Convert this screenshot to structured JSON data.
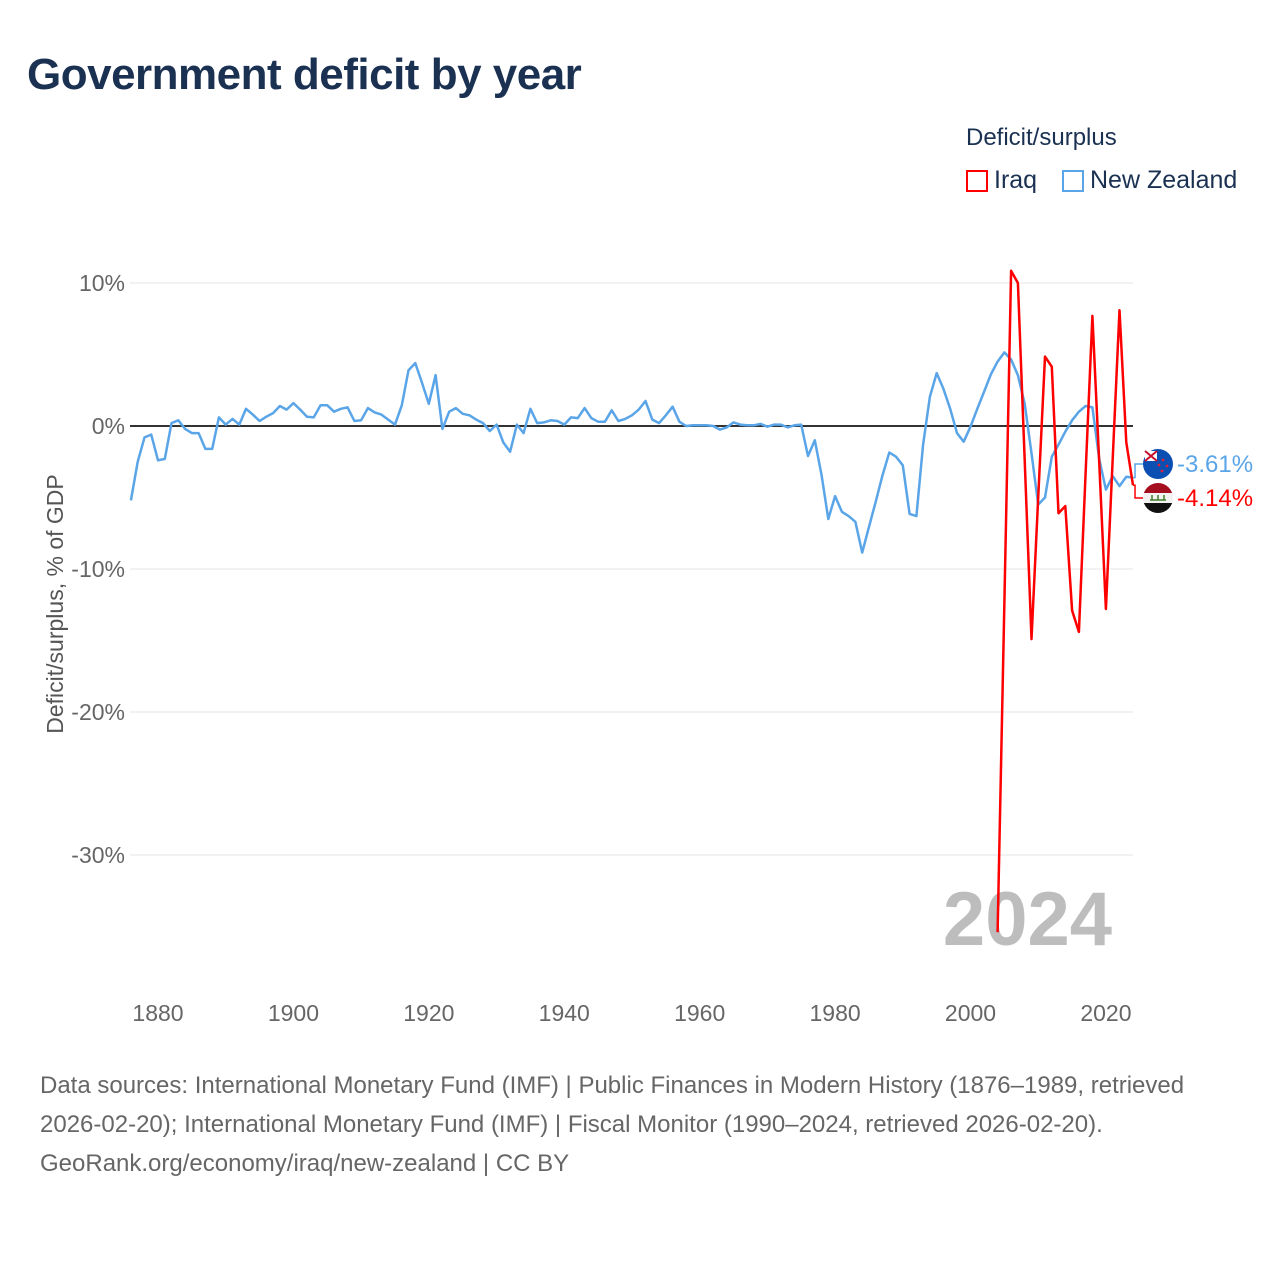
{
  "title": "Government deficit by year",
  "legend": {
    "title": "Deficit/surplus",
    "items": [
      {
        "name": "Iraq",
        "color": "#ff0000"
      },
      {
        "name": "New Zealand",
        "color": "#5aa5e8"
      }
    ]
  },
  "watermark_year": "2024",
  "footer": {
    "sources": "Data sources: International Monetary Fund (IMF) | Public Finances in Modern History (1876–1989, retrieved 2026-02-20); International Monetary Fund (IMF) | Fiscal Monitor (1990–2024, retrieved 2026-02-20).",
    "credit": "GeoRank.org/economy/iraq/new-zealand | CC BY"
  },
  "chart_data": {
    "type": "line",
    "title": "Government deficit by year",
    "xlabel": "",
    "ylabel": "Deficit/surplus, % of GDP",
    "xlim": [
      1876,
      2024
    ],
    "ylim": [
      -37,
      12
    ],
    "grid": true,
    "legend_position": "top-right",
    "x_ticks": [
      1880,
      1900,
      1920,
      1940,
      1960,
      1980,
      2000,
      2020
    ],
    "x_tick_labels": [
      "1880",
      "1900",
      "1920",
      "1940",
      "1960",
      "1980",
      "2000",
      "2020"
    ],
    "y_ticks": [
      10,
      0,
      -10,
      -20,
      -30
    ],
    "y_tick_labels": [
      "10%",
      "0%",
      "-10%",
      "-20%",
      "-30%"
    ],
    "series": [
      {
        "name": "New Zealand",
        "color": "#5aa5e8",
        "end_label": "-3.61%",
        "start_year": 1876,
        "values": [
          -5.2,
          -2.5,
          -0.8,
          -0.6,
          -2.4,
          -2.3,
          0.2,
          0.4,
          -0.2,
          -0.5,
          -0.5,
          -1.6,
          -1.6,
          0.6,
          0.1,
          0.5,
          0.1,
          1.2,
          0.8,
          0.35,
          0.65,
          0.9,
          1.4,
          1.15,
          1.6,
          1.15,
          0.65,
          0.6,
          1.45,
          1.45,
          1.0,
          1.2,
          1.3,
          0.35,
          0.4,
          1.25,
          0.95,
          0.8,
          0.45,
          0.1,
          1.45,
          3.9,
          4.4,
          3.0,
          1.55,
          3.55,
          -0.2,
          1.0,
          1.25,
          0.85,
          0.75,
          0.45,
          0.2,
          -0.35,
          0.1,
          -1.15,
          -1.8,
          0.1,
          -0.5,
          1.2,
          0.2,
          0.25,
          0.4,
          0.35,
          0.1,
          0.6,
          0.55,
          1.25,
          0.55,
          0.3,
          0.3,
          1.1,
          0.35,
          0.5,
          0.75,
          1.15,
          1.75,
          0.45,
          0.2,
          0.75,
          1.35,
          0.3,
          0,
          0.05,
          0.05,
          0.05,
          0,
          -0.25,
          -0.1,
          0.25,
          0.1,
          0.05,
          0.05,
          0.15,
          -0.05,
          0.1,
          0.1,
          -0.1,
          0.05,
          0.1,
          -2.1,
          -1.0,
          -3.45,
          -6.5,
          -4.9,
          -6.0,
          -6.3,
          -6.7,
          -8.85,
          -7.05,
          -5.3,
          -3.45,
          -1.85,
          -2.15,
          -2.75,
          -6.15,
          -6.3,
          -1.3,
          2.05,
          3.7,
          2.6,
          1.2,
          -0.5,
          -1.1,
          -0.05,
          1.2,
          2.4,
          3.6,
          4.5,
          5.15,
          4.65,
          3.55,
          1.55,
          -1.9,
          -5.5,
          -5.0,
          -2.15,
          -1.3,
          -0.4,
          0.4,
          1.0,
          1.4,
          1.3,
          -2.3,
          -4.45,
          -3.5,
          -4.2,
          -3.55,
          -3.61
        ]
      },
      {
        "name": "Iraq",
        "color": "#ff0000",
        "end_label": "-4.14%",
        "start_year": 2004,
        "values": [
          -35.4,
          -12.3,
          10.85,
          10.0,
          -2.4,
          -14.9,
          -5.0,
          4.85,
          4.15,
          -6.1,
          -5.6,
          -12.9,
          -14.4,
          -3.3,
          7.7,
          -2.5,
          -12.8,
          -2.3,
          8.1,
          -1.15,
          -4.14
        ]
      }
    ]
  }
}
